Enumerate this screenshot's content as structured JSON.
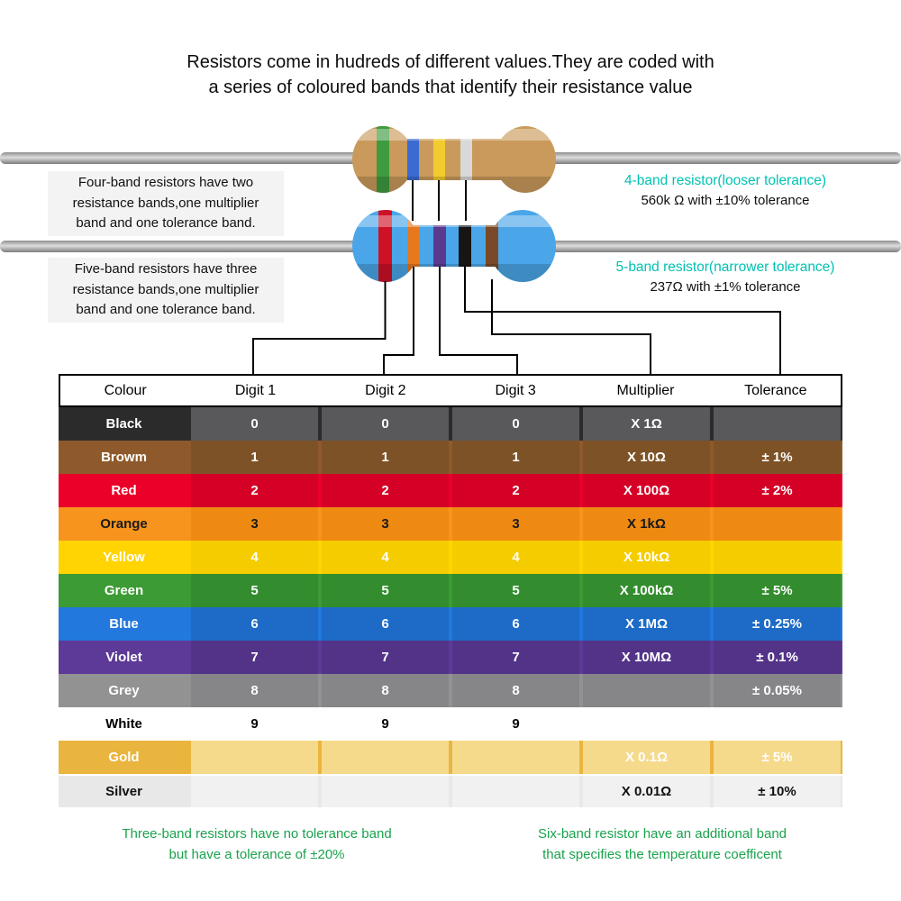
{
  "title": {
    "line1": "Resistors come in hudreds of different values.They are coded with",
    "line2": "a series of coloured bands that identify their resistance value"
  },
  "four_band": {
    "description_lines": [
      "Four-band resistors have two",
      "resistance bands,one multiplier",
      "band and one tolerance band."
    ],
    "caption": "4-band resistor(looser tolerance)",
    "value_text": "560k Ω with ±10% tolerance",
    "body_color": "#c99a5b",
    "bands": [
      "#3f9b40",
      "#3b6bd1",
      "#f2cb2e",
      "#d8d8d8"
    ]
  },
  "five_band": {
    "description_lines": [
      "Five-band resistors have three",
      "resistance bands,one multiplier",
      "band and one tolerance band."
    ],
    "caption": "5-band resistor(narrower tolerance)",
    "value_text": "237Ω with ±1% tolerance",
    "body_color": "#4aa6e8",
    "bands": [
      "#cf1126",
      "#e8781e",
      "#5a3a8e",
      "#161616",
      "#7a4a28"
    ]
  },
  "colors": {
    "caption_teal": "#00c2b2",
    "footnote_green": "#1aa24d",
    "wire_grey": "#9a9a9a",
    "connector_black": "#000000"
  },
  "table": {
    "headers": [
      "Colour",
      "Digit 1",
      "Digit 2",
      "Digit 3",
      "Multiplier",
      "Tolerance"
    ],
    "rows": [
      {
        "colour": "Black",
        "d1": "0",
        "d2": "0",
        "d3": "0",
        "mult": "X 1Ω",
        "tol": "",
        "bg": "#2b2b2b",
        "cell": "#59595b",
        "text": "#ffffff"
      },
      {
        "colour": "Browm",
        "d1": "1",
        "d2": "1",
        "d3": "1",
        "mult": "X 10Ω",
        "tol": "± 1%",
        "bg": "#8e5a2b",
        "cell": "#7d5226",
        "text": "#ffffff"
      },
      {
        "colour": "Red",
        "d1": "2",
        "d2": "2",
        "d3": "2",
        "mult": "X 100Ω",
        "tol": "± 2%",
        "bg": "#ea0029",
        "cell": "#d40026",
        "text": "#ffffff"
      },
      {
        "colour": "Orange",
        "d1": "3",
        "d2": "3",
        "d3": "3",
        "mult": "X 1kΩ",
        "tol": "",
        "bg": "#f7941e",
        "cell": "#ee8a12",
        "text": "#1a1a1a"
      },
      {
        "colour": "Yellow",
        "d1": "4",
        "d2": "4",
        "d3": "4",
        "mult": "X 10kΩ",
        "tol": "",
        "bg": "#ffd400",
        "cell": "#f5cc00",
        "text": "#ffffff"
      },
      {
        "colour": "Green",
        "d1": "5",
        "d2": "5",
        "d3": "5",
        "mult": "X 100kΩ",
        "tol": "± 5%",
        "bg": "#3c9b35",
        "cell": "#338c2e",
        "text": "#ffffff"
      },
      {
        "colour": "Blue",
        "d1": "6",
        "d2": "6",
        "d3": "6",
        "mult": "X 1MΩ",
        "tol": "± 0.25%",
        "bg": "#2278dc",
        "cell": "#1d6bc6",
        "text": "#ffffff"
      },
      {
        "colour": "Violet",
        "d1": "7",
        "d2": "7",
        "d3": "7",
        "mult": "X 10MΩ",
        "tol": "± 0.1%",
        "bg": "#5d3a97",
        "cell": "#523388",
        "text": "#ffffff"
      },
      {
        "colour": "Grey",
        "d1": "8",
        "d2": "8",
        "d3": "8",
        "mult": "",
        "tol": "± 0.05%",
        "bg": "#929292",
        "cell": "#868689",
        "text": "#ffffff"
      },
      {
        "colour": "White",
        "d1": "9",
        "d2": "9",
        "d3": "9",
        "mult": "",
        "tol": "",
        "bg": "#ffffff",
        "cell": "#ffffff",
        "text": "#000000"
      },
      {
        "colour": "Gold",
        "d1": "",
        "d2": "",
        "d3": "",
        "mult": "X 0.1Ω",
        "tol": "± 5%",
        "bg": "#eab53e",
        "cell": "#f6da8c",
        "text": "#ffffff"
      },
      {
        "colour": "Silver",
        "d1": "",
        "d2": "",
        "d3": "",
        "mult": "X 0.01Ω",
        "tol": "± 10%",
        "bg": "#e8e8e8",
        "cell": "#f1f1f1",
        "text": "#111111"
      }
    ]
  },
  "footnotes": {
    "left_lines": [
      "Three-band resistors have no tolerance band",
      "but have a tolerance of ±20%"
    ],
    "right_lines": [
      "Six-band resistor have an additional band",
      "that specifies the temperature coefficent"
    ]
  }
}
